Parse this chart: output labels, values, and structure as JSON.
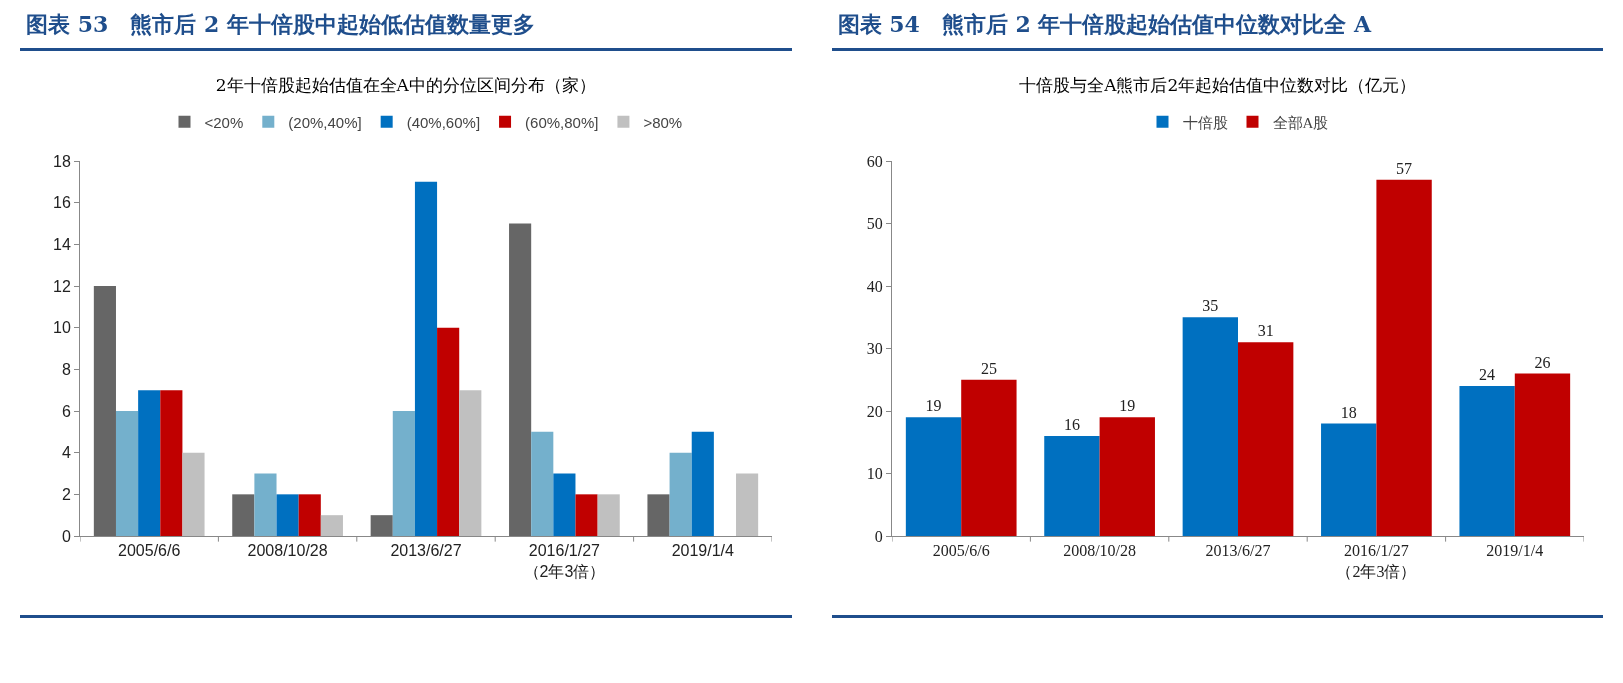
{
  "chart_data": [
    {
      "type": "bar",
      "title": "图表 53　熊市后 2 年十倍股中起始低估值数量更多",
      "subtitle": "2年十倍股起始估值在全A中的分位区间分布（家）",
      "categories": [
        "2005/6/6",
        "2008/10/28",
        "2013/6/27",
        "2016/1/27\n（2年3倍）",
        "2019/1/4"
      ],
      "series": [
        {
          "name": "<20%",
          "color": "#666666",
          "values": [
            12,
            2,
            1,
            15,
            2
          ]
        },
        {
          "name": "(20%,40%]",
          "color": "#74b0cc",
          "values": [
            6,
            3,
            6,
            5,
            4
          ]
        },
        {
          "name": "(40%,60%]",
          "color": "#0070c0",
          "values": [
            7,
            2,
            17,
            3,
            5
          ]
        },
        {
          "name": "(60%,80%]",
          "color": "#c00000",
          "values": [
            7,
            2,
            10,
            2,
            0
          ]
        },
        {
          "name": ">80%",
          "color": "#c0c0c0",
          "values": [
            4,
            1,
            7,
            2,
            3
          ]
        }
      ],
      "ylim": [
        0,
        18
      ],
      "yticks": [
        0,
        2,
        4,
        6,
        8,
        10,
        12,
        14,
        16,
        18
      ],
      "grid": false,
      "legend": "top"
    },
    {
      "type": "bar",
      "title": "图表 54　熊市后 2 年十倍股起始估值中位数对比全 A",
      "subtitle": "十倍股与全A熊市后2年起始估值中位数对比（亿元）",
      "categories": [
        "2005/6/6",
        "2008/10/28",
        "2013/6/27",
        "2016/1/27\n（2年3倍）",
        "2019/1/4"
      ],
      "series": [
        {
          "name": "十倍股",
          "color": "#0070c0",
          "values": [
            19,
            16,
            35,
            18,
            24
          ]
        },
        {
          "name": "全部A股",
          "color": "#c00000",
          "values": [
            25,
            19,
            31,
            57,
            26
          ]
        }
      ],
      "ylim": [
        0,
        60
      ],
      "yticks": [
        0,
        10,
        20,
        30,
        40,
        50,
        60
      ],
      "grid": false,
      "legend": "top",
      "data_labels": true
    }
  ]
}
